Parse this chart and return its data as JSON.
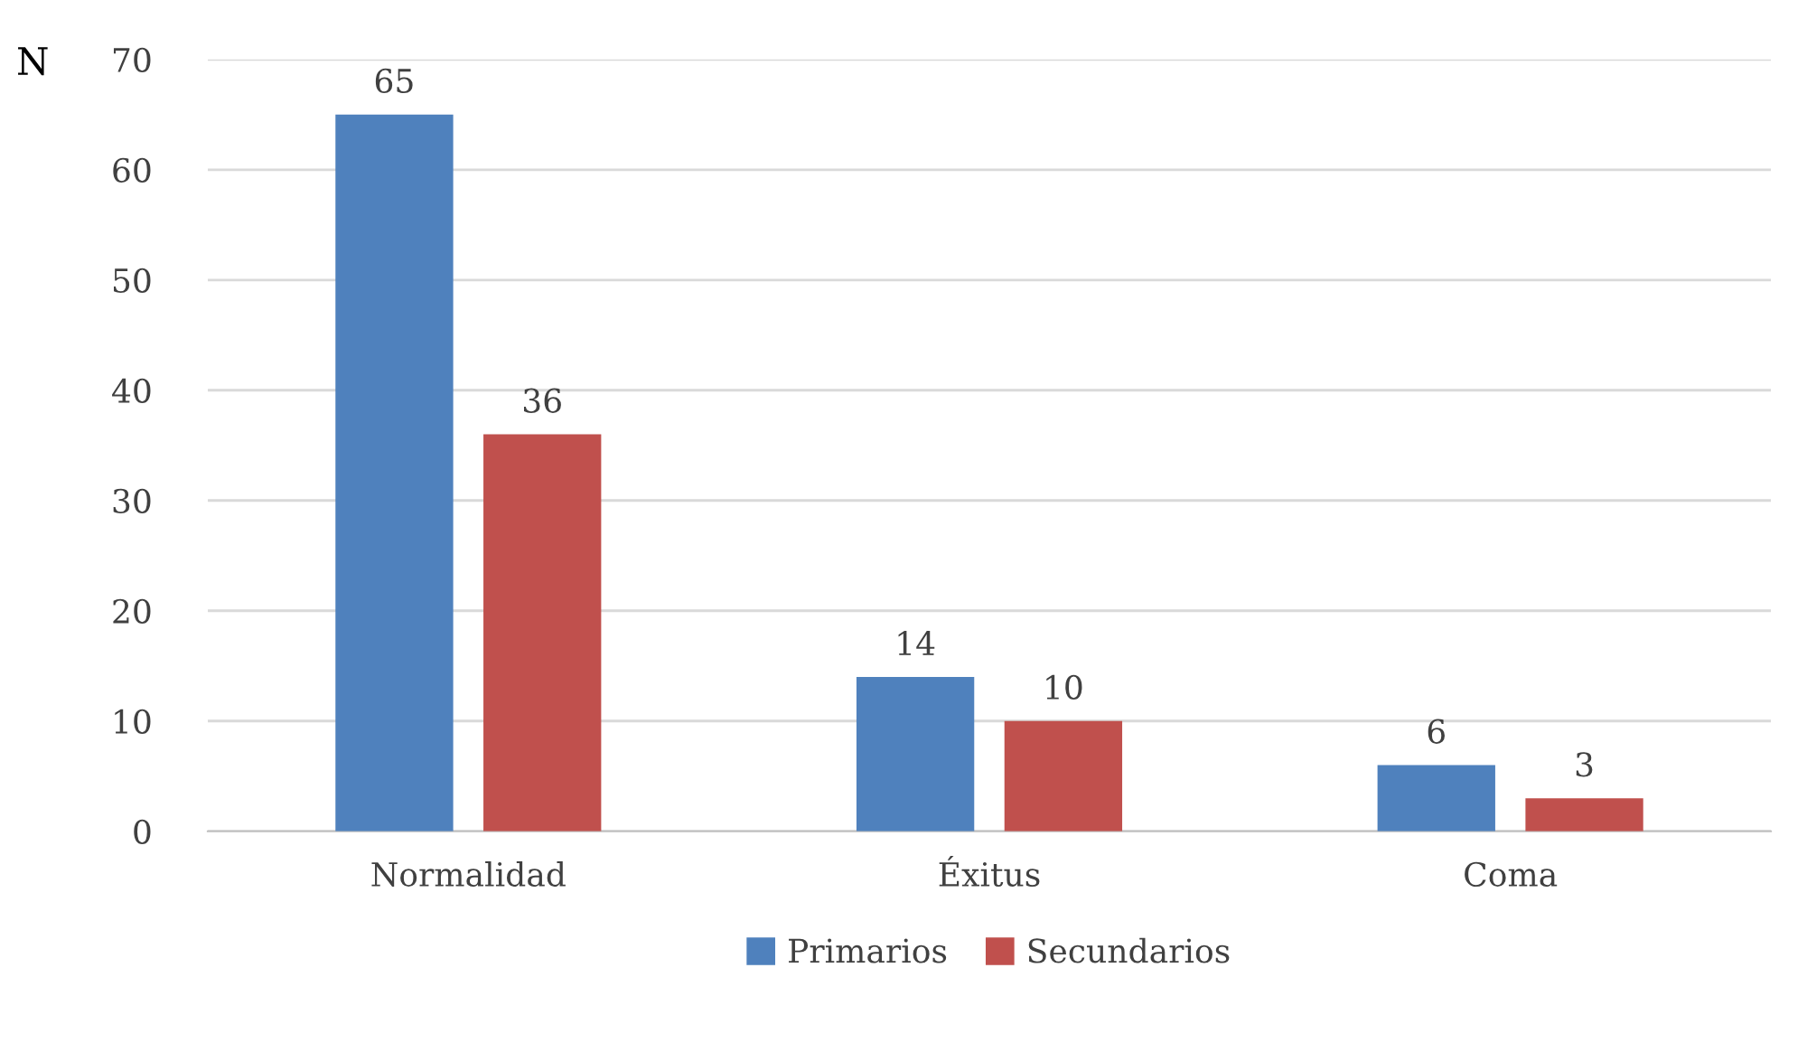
{
  "chart_data": {
    "type": "bar",
    "ylabel": "N",
    "categories": [
      "Normalidad",
      "Éxitus",
      "Coma"
    ],
    "series": [
      {
        "name": "Primarios",
        "color": "#4f81bd",
        "values": [
          65,
          14,
          6
        ]
      },
      {
        "name": "Secundarios",
        "color": "#c0504d",
        "values": [
          36,
          10,
          3
        ]
      }
    ],
    "ylim": [
      0,
      70
    ],
    "yticks": [
      0,
      10,
      20,
      30,
      40,
      50,
      60,
      70
    ],
    "grid": "y",
    "legend": "bottom",
    "data_labels": true
  }
}
